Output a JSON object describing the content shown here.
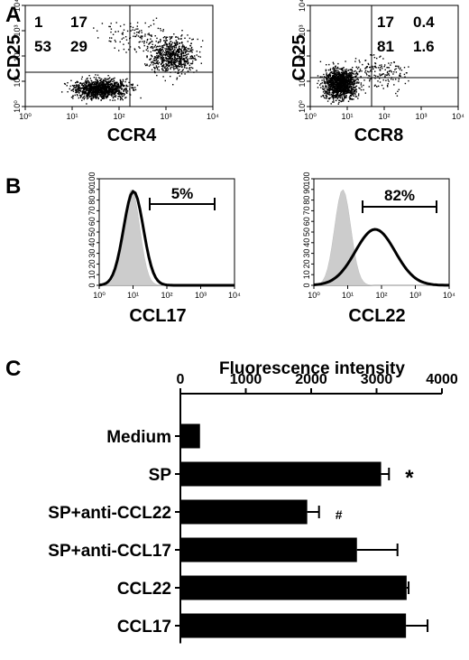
{
  "panels": {
    "a": "A",
    "b": "B",
    "c": "C"
  },
  "scatter_plots": [
    {
      "xlabel": "CCR4",
      "ylabel": "CD25",
      "quadrants": {
        "ul": "1",
        "ur": "17",
        "ll": "53",
        "lr": "29"
      }
    },
    {
      "xlabel": "CCR8",
      "ylabel": "CD25",
      "quadrants": {
        "ul": "",
        "ur": "17",
        "ur2": "0.4",
        "lr": "81",
        "lr2": "1.6"
      }
    }
  ],
  "log_ticks": [
    "10⁰",
    "10¹",
    "10²",
    "10³",
    "10⁴"
  ],
  "histogram_ticks": [
    "0",
    "10",
    "20",
    "30",
    "40",
    "50",
    "60",
    "70",
    "80",
    "90",
    "100"
  ],
  "histograms": [
    {
      "xlabel": "CCL17",
      "gate_label": "5%"
    },
    {
      "xlabel": "CCL22",
      "gate_label": "82%"
    }
  ],
  "chart_data": {
    "type": "bar",
    "orientation": "horizontal",
    "title": "Fluorescence intensity",
    "categories": [
      "Medium",
      "SP",
      "SP+anti-CCL22",
      "SP+anti-CCL17",
      "CCL22",
      "CCL17"
    ],
    "values": [
      300,
      3070,
      1940,
      2700,
      3460,
      3450
    ],
    "errors": [
      0,
      120,
      180,
      620,
      30,
      330
    ],
    "annotations": [
      "",
      "*",
      "#",
      "",
      "",
      ""
    ],
    "xlim": [
      0,
      4000
    ],
    "xticks": [
      0,
      1000,
      2000,
      3000,
      4000
    ],
    "colors": {
      "bar": "#000000",
      "histogram_fill": "#cccccc",
      "histogram_line": "#000000"
    }
  }
}
